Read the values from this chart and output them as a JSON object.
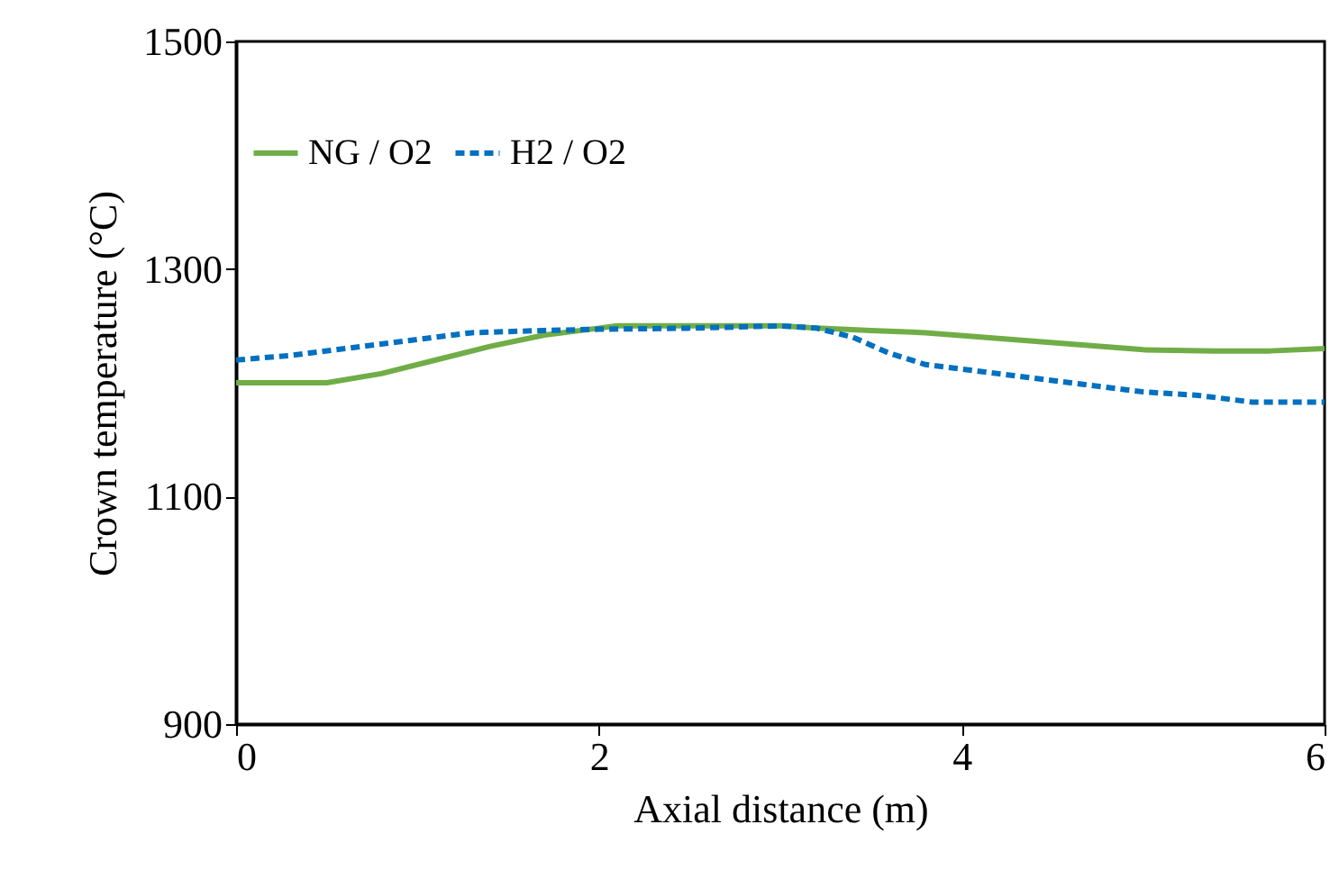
{
  "chart_data": {
    "type": "line",
    "xlabel": "Axial distance (m)",
    "ylabel": "Crown temperature (°C)",
    "xlim": [
      0,
      6
    ],
    "xticks": [
      0,
      2,
      4,
      6
    ],
    "ylim": [
      900,
      1500
    ],
    "yticks": [
      900,
      1100,
      1300,
      1500
    ],
    "grid": false,
    "legend": "top left",
    "marker": "none",
    "series": [
      {
        "name": "NG / O2",
        "color": "#70ad47",
        "line_style": "solid",
        "x": [
          0,
          0.25,
          0.5,
          0.8,
          1.1,
          1.4,
          1.7,
          2.0,
          2.1,
          2.5,
          3.0,
          3.2,
          3.5,
          3.8,
          4.2,
          4.6,
          5.0,
          5.4,
          5.7,
          6.0
        ],
        "values": [
          1200,
          1200,
          1200,
          1208,
          1220,
          1232,
          1242,
          1248,
          1250,
          1250,
          1250,
          1248,
          1246,
          1244,
          1239,
          1234,
          1229,
          1228,
          1228,
          1230
        ]
      },
      {
        "name": "H2 / O2",
        "color": "#0070c0",
        "line_style": "dashed",
        "x": [
          0,
          0.3,
          0.6,
          1.0,
          1.3,
          1.7,
          2.0,
          2.5,
          3.0,
          3.2,
          3.4,
          3.6,
          3.8,
          4.2,
          4.6,
          5.0,
          5.3,
          5.6,
          6.0
        ],
        "values": [
          1220,
          1224,
          1230,
          1238,
          1244,
          1246,
          1247,
          1248,
          1250,
          1248,
          1240,
          1226,
          1216,
          1208,
          1200,
          1192,
          1189,
          1183,
          1183
        ]
      }
    ]
  }
}
